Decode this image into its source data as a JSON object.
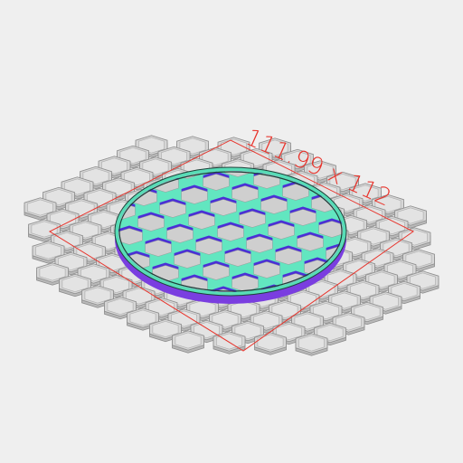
{
  "viewport": {
    "background": "#efefef",
    "dimension_label": "111.99 x 112",
    "dimension_color": "#e8342c"
  },
  "colors": {
    "grid_tile_fill": "#d6d6d6",
    "grid_tile_stroke": "#8c8c8c",
    "lattice_top": "#62e6c0",
    "lattice_side": "#4b2fd6",
    "rim_side": "#7a3ee0",
    "cell_fill": "#cfcfcf",
    "bounding_box": "#e8342c"
  }
}
